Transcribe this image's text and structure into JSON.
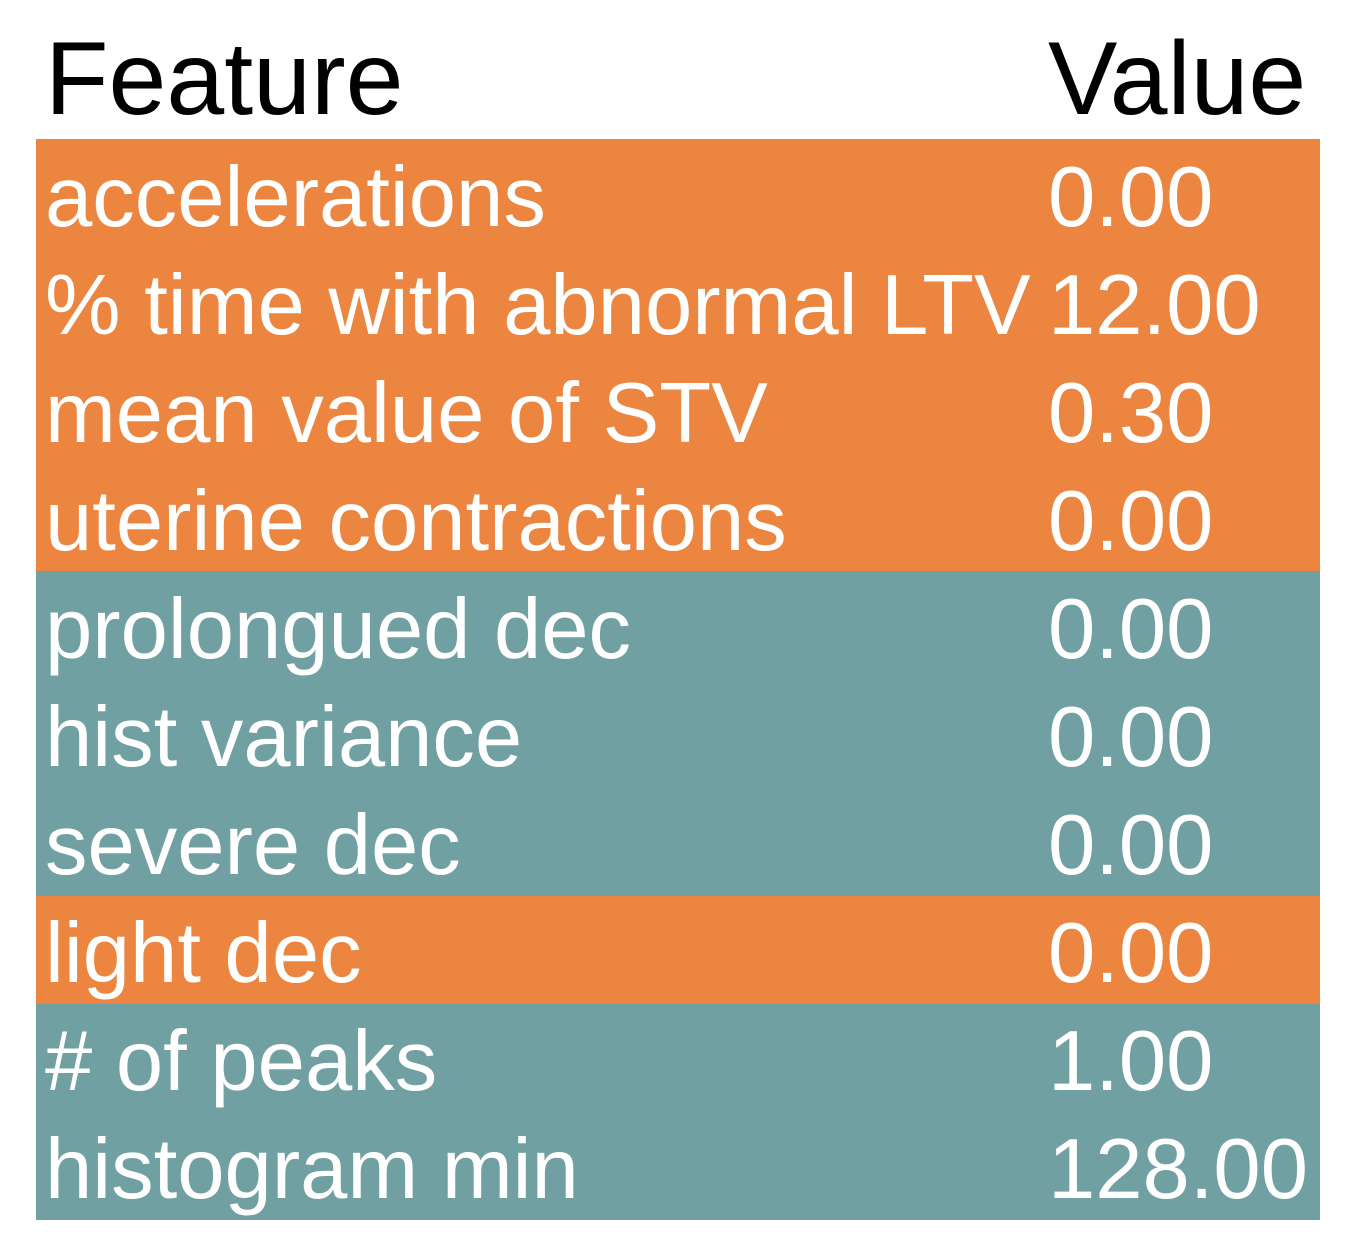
{
  "page": {
    "background": "#ffffff"
  },
  "colors": {
    "orange": "#EB8540",
    "teal": "#70A0A2",
    "header_text": "#000000",
    "row_text": "#ffffff"
  },
  "header": {
    "feature_label": "Feature",
    "value_label": "Value"
  },
  "table": {
    "rows": [
      {
        "label": "accelerations",
        "value": "0.00",
        "color": "orange"
      },
      {
        "label": "% time with abnormal LTV",
        "value": "12.00",
        "color": "orange"
      },
      {
        "label": "mean value of STV",
        "value": "0.30",
        "color": "orange"
      },
      {
        "label": "uterine contractions",
        "value": "0.00",
        "color": "orange"
      },
      {
        "label": "prolongued dec",
        "value": "0.00",
        "color": "teal"
      },
      {
        "label": "hist variance",
        "value": "0.00",
        "color": "teal"
      },
      {
        "label": "severe dec",
        "value": "0.00",
        "color": "teal"
      },
      {
        "label": "light dec",
        "value": "0.00",
        "color": "orange"
      },
      {
        "label": "# of peaks",
        "value": "1.00",
        "color": "teal"
      },
      {
        "label": "histogram min",
        "value": "128.00",
        "color": "teal"
      }
    ]
  },
  "chart_data": {
    "type": "table",
    "title": "",
    "columns": [
      "Feature",
      "Value"
    ],
    "rows": [
      [
        "accelerations",
        0.0
      ],
      [
        "% time with abnormal LTV",
        12.0
      ],
      [
        "mean value of STV",
        0.3
      ],
      [
        "uterine contractions",
        0.0
      ],
      [
        "prolongued dec",
        0.0
      ],
      [
        "hist variance",
        0.0
      ],
      [
        "severe dec",
        0.0
      ],
      [
        "light dec",
        0.0
      ],
      [
        "# of peaks",
        1.0
      ],
      [
        "histogram min",
        128.0
      ]
    ],
    "row_colors": [
      "orange",
      "orange",
      "orange",
      "orange",
      "teal",
      "teal",
      "teal",
      "orange",
      "teal",
      "teal"
    ],
    "color_map": {
      "orange": "#EB8540",
      "teal": "#70A0A2"
    },
    "layout_hints": {
      "header_text_color": "#000000",
      "row_text_color": "#ffffff",
      "value_column_alignment": "left",
      "grid": false
    }
  }
}
